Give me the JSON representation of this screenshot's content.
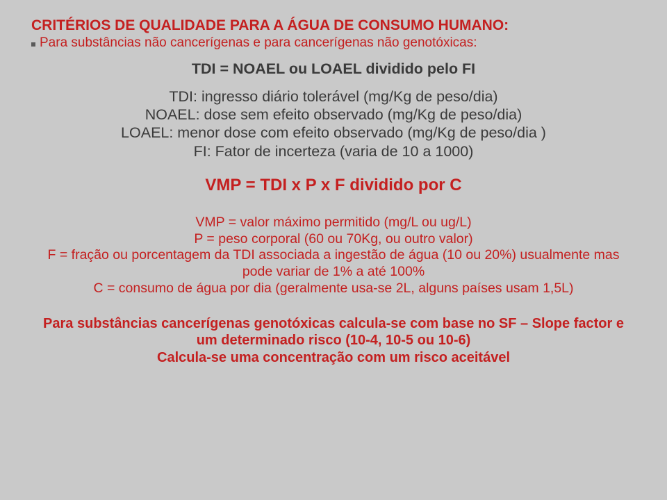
{
  "title": "CRITÉRIOS  DE QUALIDADE PARA A ÁGUA DE CONSUMO HUMANO:",
  "subtitle": "Para substâncias não cancerígenas e para cancerígenas não genotóxicas:",
  "formula_tdi": "TDI =    NOAEL ou LOAEL dividido pelo FI",
  "def_tdi": "TDI: ingresso  diário tolerável (mg/Kg de peso/dia)",
  "def_noael": "NOAEL:  dose sem efeito observado (mg/Kg de peso/dia)",
  "def_loael": "LOAEL: menor dose com efeito observado (mg/Kg de peso/dia )",
  "def_fi": "FI: Fator de incerteza (varia de 10 a 1000)",
  "vmp_formula": "VMP =    TDI x P x F   dividido por    C",
  "vmp_def1": "VMP = valor máximo permitido (mg/L ou ug/L)",
  "vmp_def2": "P = peso corporal (60 ou 70Kg, ou outro valor)",
  "vmp_def3": "F = fração ou porcentagem da TDI associada a ingestão de água (10 ou 20%) usualmente mas pode variar de 1% a até 100%",
  "vmp_def4": "C = consumo de água por dia (geralmente usa-se 2L, alguns países usam 1,5L)",
  "footer1": "Para substâncias cancerígenas genotóxicas calcula-se com base no SF – Slope factor e um determinado risco (10-4, 10-5 ou 10-6)",
  "footer2": "Calcula-se uma concentração  com um risco aceitável",
  "colors": {
    "background": "#c9c9c9",
    "accent_red": "#c42020",
    "text_dark": "#3a3a3a",
    "bullet": "#5a5a5a"
  },
  "fontsizes": {
    "title": 21,
    "subtitle": 19,
    "formula_tdi": 21.5,
    "defs": 21.5,
    "vmp_formula": 24,
    "vmp_defs": 19.5,
    "footer": 20
  }
}
